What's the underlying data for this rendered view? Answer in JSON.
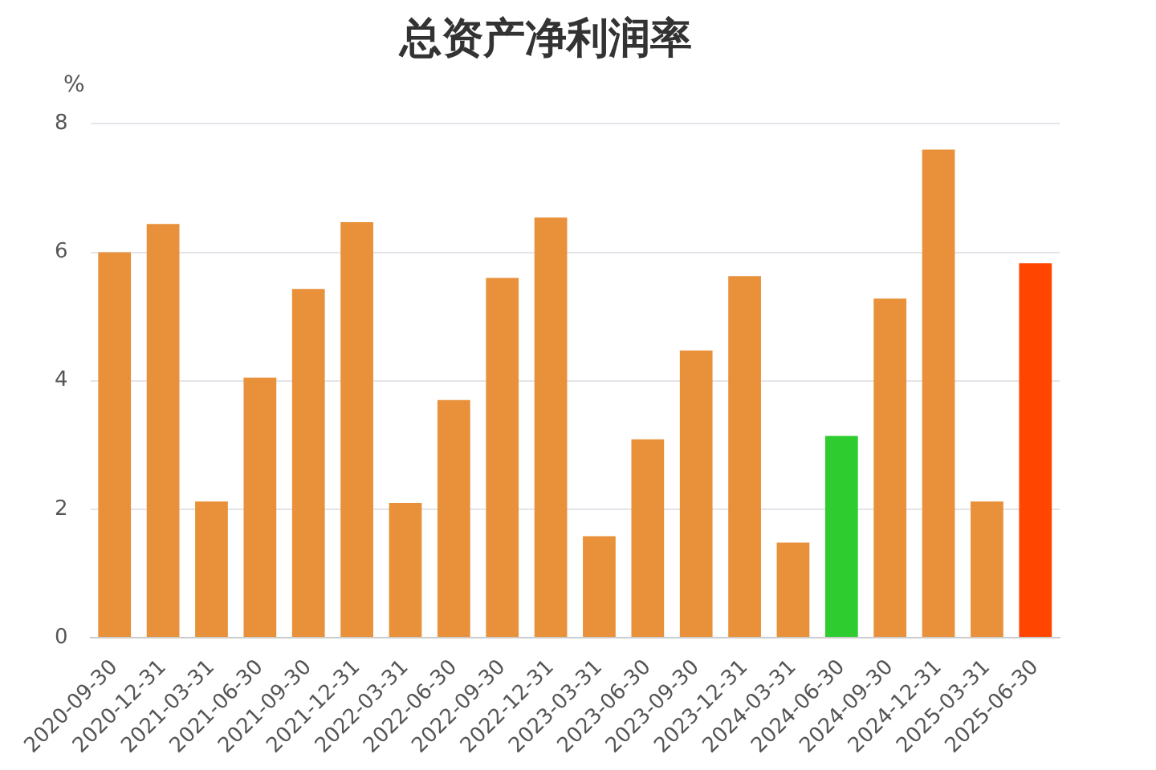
{
  "chart_data": {
    "type": "bar",
    "title": "总资产净利润率",
    "ylabel": "%",
    "categories": [
      "2020-09-30",
      "2020-12-31",
      "2021-03-31",
      "2021-06-30",
      "2021-09-30",
      "2021-12-31",
      "2022-03-31",
      "2022-06-30",
      "2022-09-30",
      "2022-12-31",
      "2023-03-31",
      "2023-06-30",
      "2023-09-30",
      "2023-12-31",
      "2024-03-31",
      "2024-06-30",
      "2024-09-30",
      "2024-12-31",
      "2025-03-31",
      "2025-06-30"
    ],
    "values": [
      6.0,
      6.44,
      2.12,
      4.05,
      5.43,
      6.47,
      2.1,
      3.7,
      5.6,
      6.54,
      1.58,
      3.09,
      4.47,
      5.63,
      1.48,
      3.14,
      5.28,
      7.6,
      2.12,
      5.83
    ],
    "colors": [
      "#e8913a",
      "#e8913a",
      "#e8913a",
      "#e8913a",
      "#e8913a",
      "#e8913a",
      "#e8913a",
      "#e8913a",
      "#e8913a",
      "#e8913a",
      "#e8913a",
      "#e8913a",
      "#e8913a",
      "#e8913a",
      "#e8913a",
      "#2ecc2e",
      "#e8913a",
      "#e8913a",
      "#e8913a",
      "#ff4500"
    ],
    "ylim": [
      0,
      8
    ],
    "yticks": [
      0,
      2,
      4,
      6,
      8
    ],
    "grid": "y",
    "legend": false
  }
}
